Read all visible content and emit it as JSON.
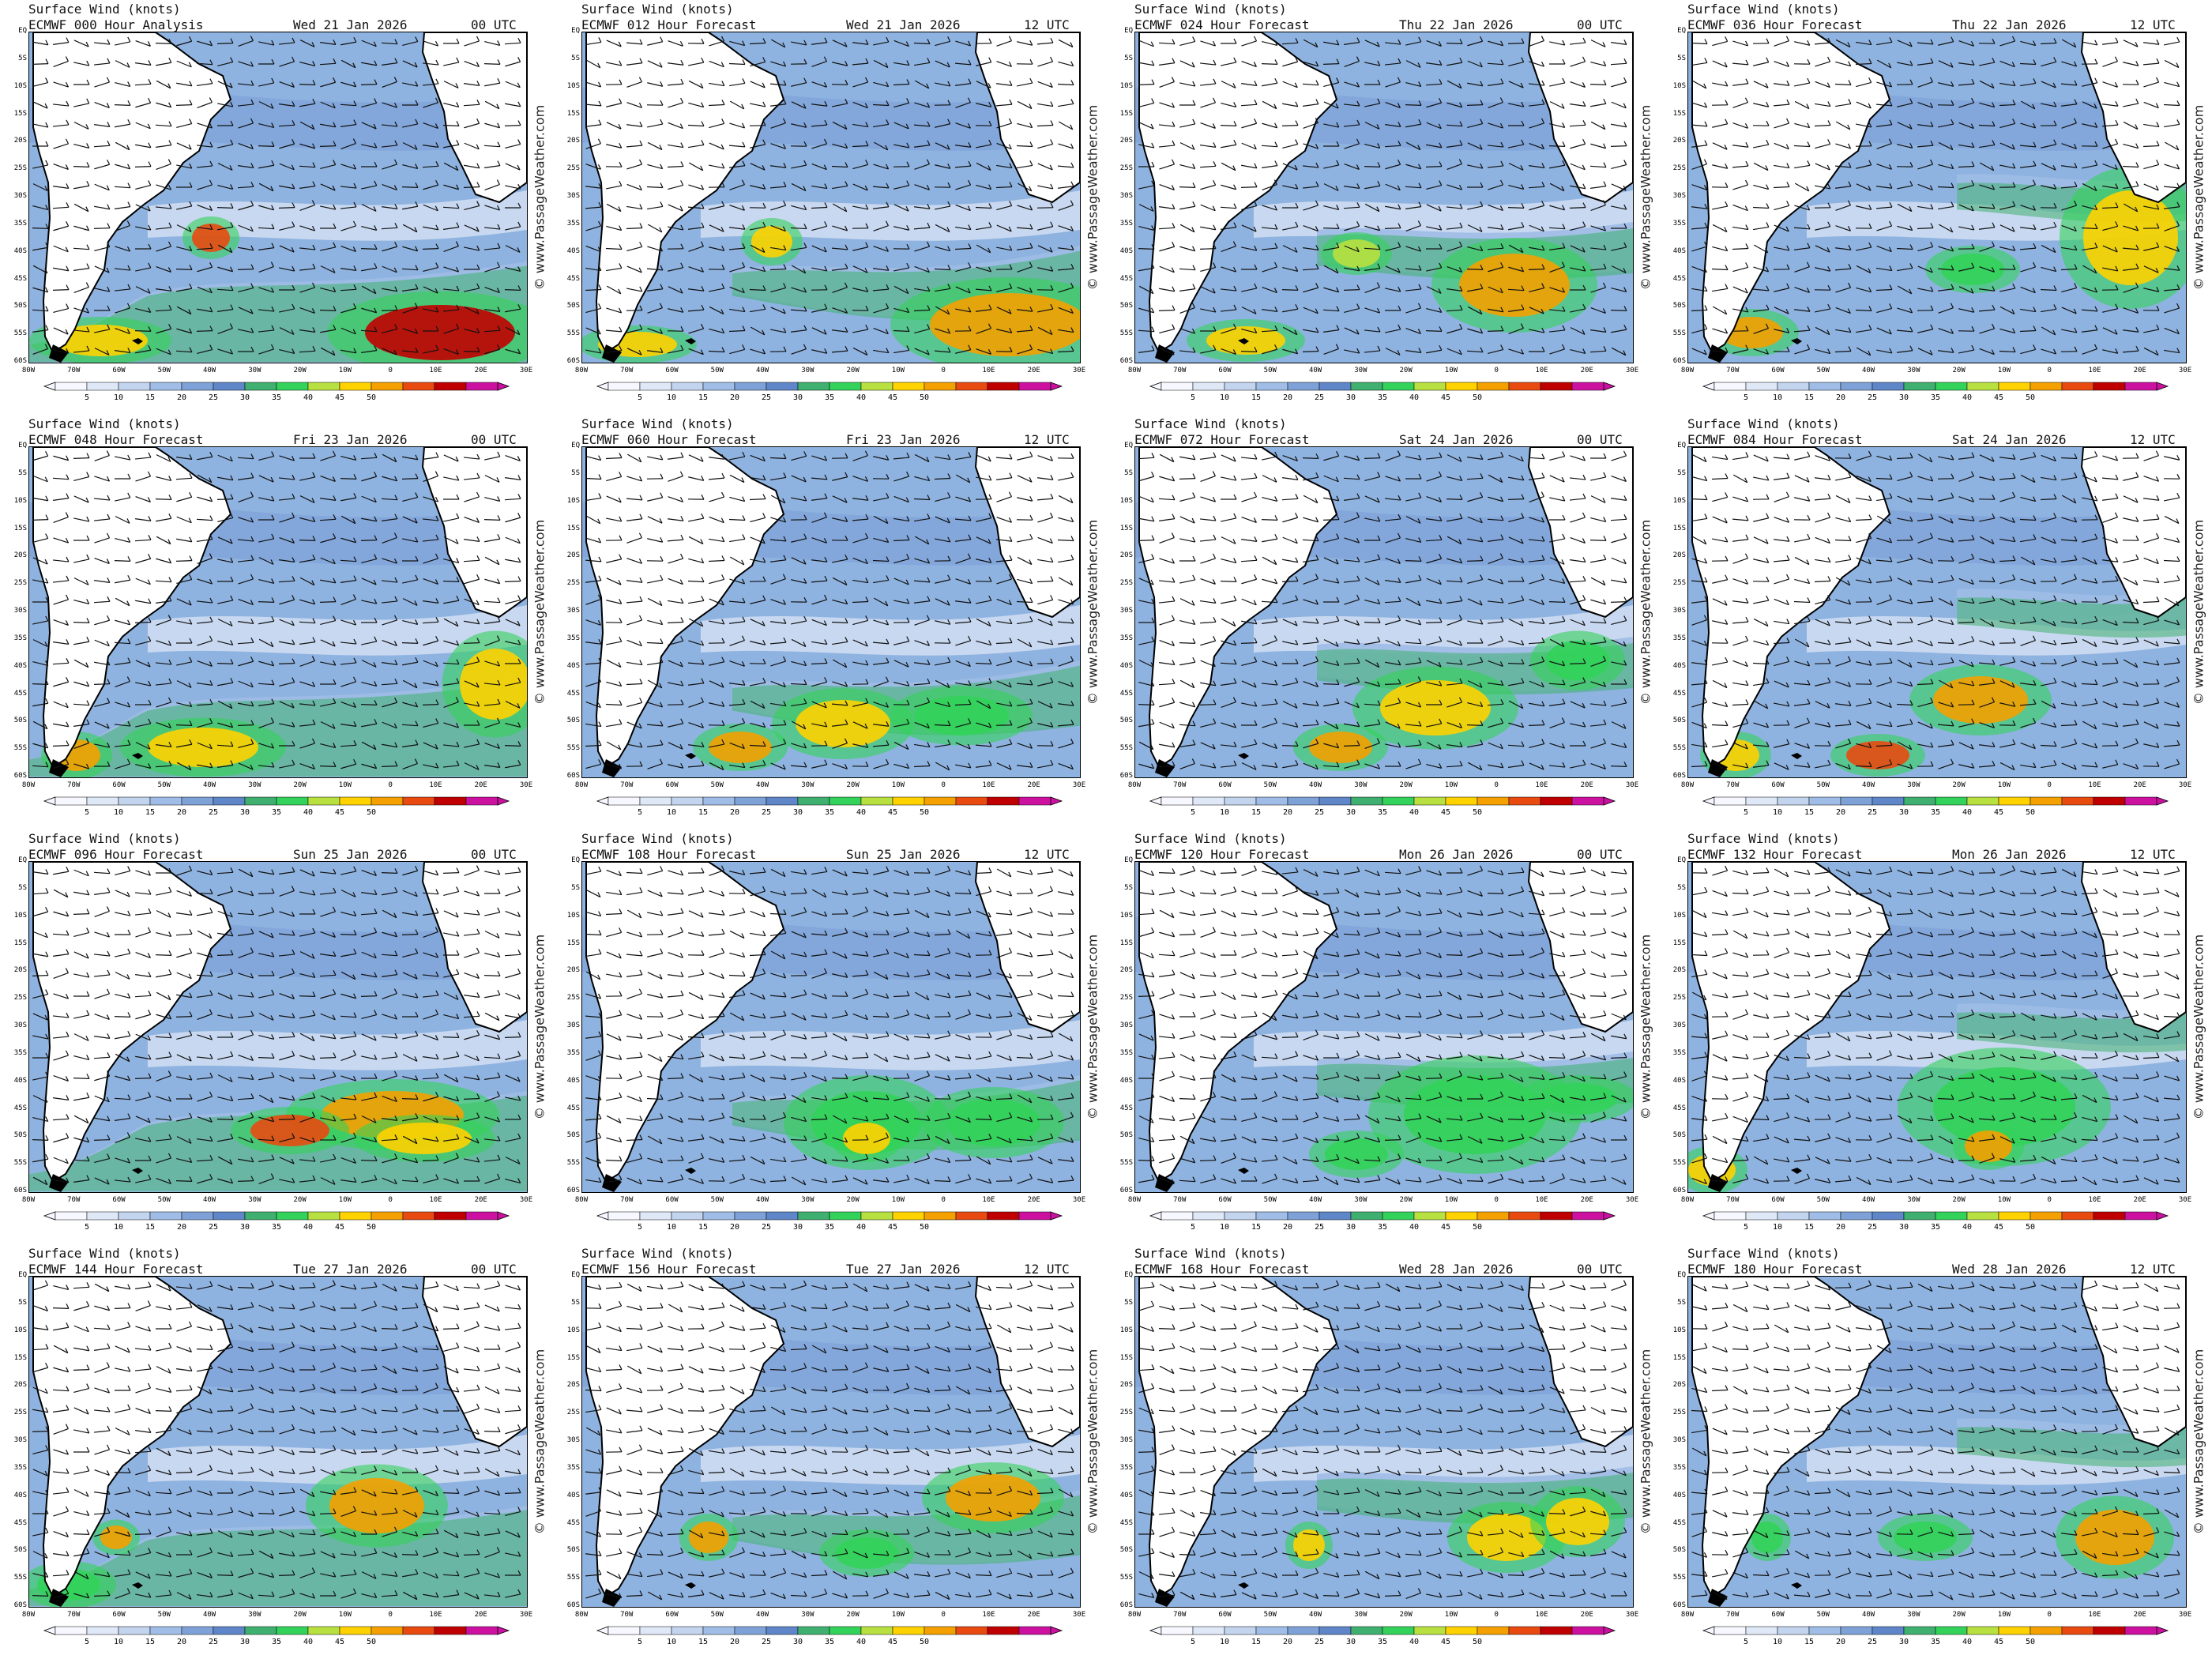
{
  "common": {
    "title": "Surface Wind (knots)",
    "watermark": "© www.PassageWeather.com",
    "lat_labels": [
      "EQ",
      "5S",
      "10S",
      "15S",
      "20S",
      "25S",
      "30S",
      "35S",
      "40S",
      "45S",
      "50S",
      "55S",
      "60S"
    ],
    "lon_labels": [
      "80W",
      "70W",
      "60W",
      "50W",
      "40W",
      "30W",
      "20W",
      "10W",
      "0",
      "10E",
      "20E",
      "30E"
    ],
    "legend_values": [
      "5",
      "10",
      "15",
      "20",
      "25",
      "30",
      "35",
      "40",
      "45",
      "50"
    ],
    "legend_colors": [
      "#f7f7ff",
      "#dfe8f7",
      "#c3d4ee",
      "#9fbde6",
      "#7ea2d8",
      "#5f86c8",
      "#3fb070",
      "#33d25a",
      "#b8e040",
      "#ffd200",
      "#f4a000",
      "#e84a10",
      "#c00000",
      "#cc10a0"
    ],
    "land_color": "#ffffff",
    "coast_color": "#000000"
  },
  "panels": [
    {
      "label": "ECMWF 000 Hour Analysis",
      "date": "Wed 21 Jan 2026",
      "time": "00 UTC"
    },
    {
      "label": "ECMWF 012 Hour Forecast",
      "date": "Wed 21 Jan 2026",
      "time": "12 UTC"
    },
    {
      "label": "ECMWF 024 Hour Forecast",
      "date": "Thu 22 Jan 2026",
      "time": "00 UTC"
    },
    {
      "label": "ECMWF 036 Hour Forecast",
      "date": "Thu 22 Jan 2026",
      "time": "12 UTC"
    },
    {
      "label": "ECMWF 048 Hour Forecast",
      "date": "Fri 23 Jan 2026",
      "time": "00 UTC"
    },
    {
      "label": "ECMWF 060 Hour Forecast",
      "date": "Fri 23 Jan 2026",
      "time": "12 UTC"
    },
    {
      "label": "ECMWF 072 Hour Forecast",
      "date": "Sat 24 Jan 2026",
      "time": "00 UTC"
    },
    {
      "label": "ECMWF 084 Hour Forecast",
      "date": "Sat 24 Jan 2026",
      "time": "12 UTC"
    },
    {
      "label": "ECMWF 096 Hour Forecast",
      "date": "Sun 25 Jan 2026",
      "time": "00 UTC"
    },
    {
      "label": "ECMWF 108 Hour Forecast",
      "date": "Sun 25 Jan 2026",
      "time": "12 UTC"
    },
    {
      "label": "ECMWF 120 Hour Forecast",
      "date": "Mon 26 Jan 2026",
      "time": "00 UTC"
    },
    {
      "label": "ECMWF 132 Hour Forecast",
      "date": "Mon 26 Jan 2026",
      "time": "12 UTC"
    },
    {
      "label": "ECMWF 144 Hour Forecast",
      "date": "Tue 27 Jan 2026",
      "time": "00 UTC"
    },
    {
      "label": "ECMWF 156 Hour Forecast",
      "date": "Tue 27 Jan 2026",
      "time": "12 UTC"
    },
    {
      "label": "ECMWF 168 Hour Forecast",
      "date": "Wed 28 Jan 2026",
      "time": "00 UTC"
    },
    {
      "label": "ECMWF 180 Hour Forecast",
      "date": "Wed 28 Jan 2026",
      "time": "12 UTC"
    }
  ]
}
